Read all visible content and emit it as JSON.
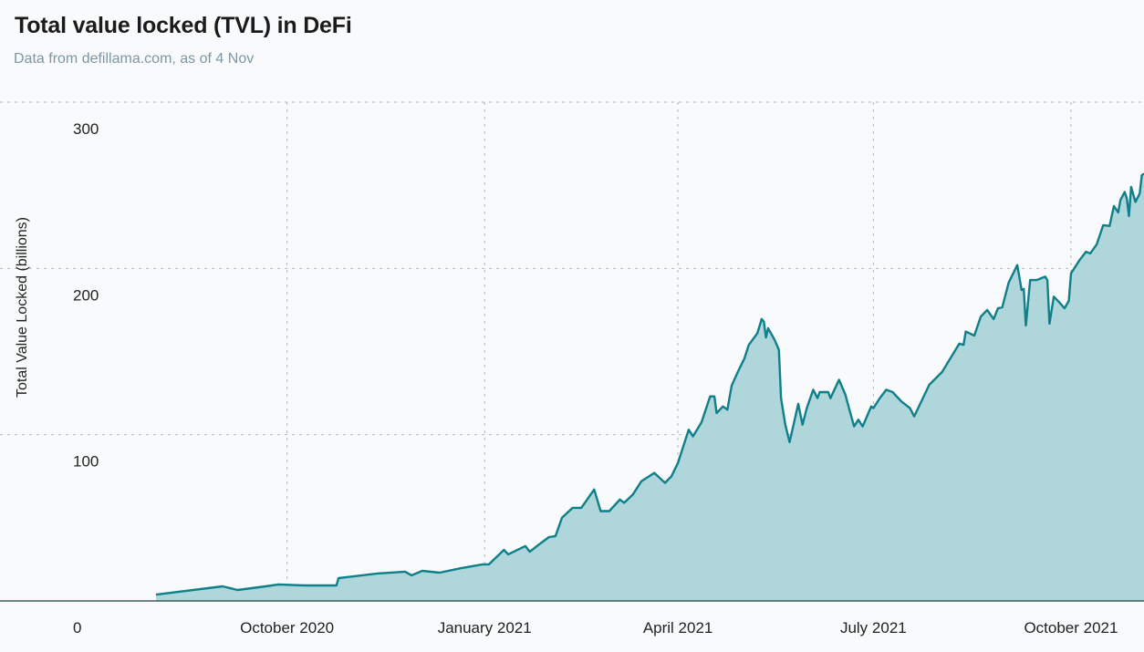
{
  "chart_data": {
    "type": "area",
    "title": "Total value locked (TVL) in DeFi",
    "subtitle": "Data from defillama.com, as of 4 Nov",
    "xlabel": "",
    "ylabel": "Total Value Locked (billions)",
    "xlim": [
      "2020-08-01",
      "2021-11-04"
    ],
    "ylim": [
      0,
      300
    ],
    "grid": true,
    "x_ticks": [
      {
        "date": "2020-10-01",
        "label": "October 2020"
      },
      {
        "date": "2021-01-01",
        "label": "January 2021"
      },
      {
        "date": "2021-04-01",
        "label": "April 2021"
      },
      {
        "date": "2021-07-01",
        "label": "July 2021"
      },
      {
        "date": "2021-10-01",
        "label": "October 2021"
      }
    ],
    "y_ticks": [
      {
        "value": 0,
        "label": "0"
      },
      {
        "value": 100,
        "label": "100"
      },
      {
        "value": 200,
        "label": "200"
      },
      {
        "value": 300,
        "label": "300"
      }
    ],
    "colors": {
      "line": "#0f7f8a",
      "fill": "#afd6da",
      "grid": "#b5b5b5"
    },
    "series": [
      {
        "name": "TVL",
        "points": [
          [
            "2020-08-01",
            3.8
          ],
          [
            "2020-09-01",
            8.8
          ],
          [
            "2020-09-08",
            6.6
          ],
          [
            "2020-09-21",
            8.8
          ],
          [
            "2020-09-27",
            9.9
          ],
          [
            "2020-10-09",
            9.3
          ],
          [
            "2020-10-24",
            9.3
          ],
          [
            "2020-10-25",
            13.7
          ],
          [
            "2020-11-12",
            16.5
          ],
          [
            "2020-11-25",
            17.6
          ],
          [
            "2020-11-28",
            15.4
          ],
          [
            "2020-12-03",
            18.1
          ],
          [
            "2020-12-11",
            17.0
          ],
          [
            "2020-12-21",
            19.7
          ],
          [
            "2020-12-31",
            22.0
          ],
          [
            "2021-01-03",
            22.0
          ],
          [
            "2021-01-10",
            30.7
          ],
          [
            "2021-01-12",
            28.0
          ],
          [
            "2021-01-20",
            33.0
          ],
          [
            "2021-01-22",
            29.6
          ],
          [
            "2021-01-27",
            34.6
          ],
          [
            "2021-01-31",
            38.4
          ],
          [
            "2021-02-03",
            39.0
          ],
          [
            "2021-02-06",
            50.0
          ],
          [
            "2021-02-11",
            56.0
          ],
          [
            "2021-02-15",
            56.0
          ],
          [
            "2021-02-21",
            67.0
          ],
          [
            "2021-02-24",
            54.0
          ],
          [
            "2021-02-28",
            54.0
          ],
          [
            "2021-03-05",
            61.0
          ],
          [
            "2021-03-07",
            59.0
          ],
          [
            "2021-03-11",
            64.0
          ],
          [
            "2021-03-15",
            72.0
          ],
          [
            "2021-03-21",
            77.0
          ],
          [
            "2021-03-26",
            71.0
          ],
          [
            "2021-03-29",
            75.0
          ],
          [
            "2021-04-01",
            83.0
          ],
          [
            "2021-04-06",
            103.0
          ],
          [
            "2021-04-08",
            99.0
          ],
          [
            "2021-04-12",
            107.5
          ],
          [
            "2021-04-16",
            123.0
          ],
          [
            "2021-04-18",
            123.0
          ],
          [
            "2021-04-19",
            113.0
          ],
          [
            "2021-04-22",
            117.0
          ],
          [
            "2021-04-24",
            115.0
          ],
          [
            "2021-04-26",
            129.5
          ],
          [
            "2021-04-29",
            138.0
          ],
          [
            "2021-05-02",
            146.0
          ],
          [
            "2021-05-04",
            154.0
          ],
          [
            "2021-05-08",
            161.0
          ],
          [
            "2021-05-10",
            169.5
          ],
          [
            "2021-05-11",
            168.0
          ],
          [
            "2021-05-12",
            158.5
          ],
          [
            "2021-05-13",
            164.0
          ],
          [
            "2021-05-16",
            157.0
          ],
          [
            "2021-05-18",
            151.0
          ],
          [
            "2021-05-19",
            122.0
          ],
          [
            "2021-05-21",
            106.0
          ],
          [
            "2021-05-23",
            95.5
          ],
          [
            "2021-05-27",
            118.5
          ],
          [
            "2021-05-29",
            106.0
          ],
          [
            "2021-05-31",
            116.0
          ],
          [
            "2021-06-03",
            127.0
          ],
          [
            "2021-06-05",
            122.0
          ],
          [
            "2021-06-06",
            125.6
          ],
          [
            "2021-06-10",
            125.6
          ],
          [
            "2021-06-11",
            122.0
          ],
          [
            "2021-06-15",
            133.0
          ],
          [
            "2021-06-18",
            124.0
          ],
          [
            "2021-06-19",
            119.0
          ],
          [
            "2021-06-22",
            105.0
          ],
          [
            "2021-06-24",
            109.0
          ],
          [
            "2021-06-26",
            105.0
          ],
          [
            "2021-06-30",
            117.0
          ],
          [
            "2021-07-01",
            116.0
          ],
          [
            "2021-07-04",
            122.0
          ],
          [
            "2021-07-07",
            127.0
          ],
          [
            "2021-07-10",
            125.6
          ],
          [
            "2021-07-14",
            120.0
          ],
          [
            "2021-07-18",
            116.0
          ],
          [
            "2021-07-20",
            111.0
          ],
          [
            "2021-07-27",
            130.0
          ],
          [
            "2021-08-02",
            137.7
          ],
          [
            "2021-08-10",
            154.7
          ],
          [
            "2021-08-12",
            154.0
          ],
          [
            "2021-08-13",
            162.0
          ],
          [
            "2021-08-17",
            159.6
          ],
          [
            "2021-08-20",
            171.0
          ],
          [
            "2021-08-23",
            175.0
          ],
          [
            "2021-08-26",
            169.5
          ],
          [
            "2021-08-28",
            176.0
          ],
          [
            "2021-08-30",
            176.6
          ],
          [
            "2021-09-02",
            191.5
          ],
          [
            "2021-09-06",
            202.0
          ],
          [
            "2021-09-08",
            187.0
          ],
          [
            "2021-09-09",
            187.6
          ],
          [
            "2021-09-10",
            165.7
          ],
          [
            "2021-09-12",
            193.0
          ],
          [
            "2021-09-15",
            193.0
          ],
          [
            "2021-09-19",
            195.0
          ],
          [
            "2021-09-20",
            193.0
          ],
          [
            "2021-09-21",
            166.8
          ],
          [
            "2021-09-23",
            183.0
          ],
          [
            "2021-09-26",
            179.0
          ],
          [
            "2021-09-28",
            176.0
          ],
          [
            "2021-09-30",
            180.5
          ],
          [
            "2021-10-01",
            197.0
          ],
          [
            "2021-10-05",
            205.0
          ],
          [
            "2021-10-08",
            210.0
          ],
          [
            "2021-10-10",
            209.0
          ],
          [
            "2021-10-13",
            214.5
          ],
          [
            "2021-10-16",
            226.0
          ],
          [
            "2021-10-19",
            225.5
          ],
          [
            "2021-10-21",
            237.5
          ],
          [
            "2021-10-23",
            233.7
          ],
          [
            "2021-10-24",
            241.0
          ],
          [
            "2021-10-26",
            246.0
          ],
          [
            "2021-10-27",
            242.0
          ],
          [
            "2021-10-28",
            231.5
          ],
          [
            "2021-10-29",
            249.0
          ],
          [
            "2021-10-31",
            240.0
          ],
          [
            "2021-11-02",
            245.0
          ],
          [
            "2021-11-03",
            256.0
          ],
          [
            "2021-11-04",
            257.0
          ]
        ]
      }
    ]
  }
}
